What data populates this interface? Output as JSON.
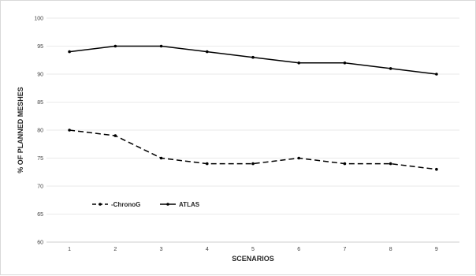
{
  "chart_data": {
    "type": "line",
    "title": "",
    "xlabel": "SCENARIOS",
    "ylabel": "% OF PLANNED MESHES",
    "categories": [
      "1",
      "2",
      "3",
      "4",
      "5",
      "6",
      "7",
      "8",
      "9"
    ],
    "ylim": [
      60,
      100
    ],
    "yticks": [
      "60",
      "65",
      "70",
      "75",
      "80",
      "85",
      "90",
      "95",
      "100"
    ],
    "grid": true,
    "legend_position": "lower-left",
    "series": [
      {
        "name": "-ChronoG",
        "values": [
          80,
          79,
          75,
          74,
          74,
          75,
          74,
          74,
          73
        ],
        "color": "#000000",
        "dashed": true
      },
      {
        "name": "ATLAS",
        "values": [
          94,
          95,
          95,
          94,
          93,
          92,
          92,
          91,
          90
        ],
        "color": "#000000",
        "dashed": false
      }
    ]
  }
}
